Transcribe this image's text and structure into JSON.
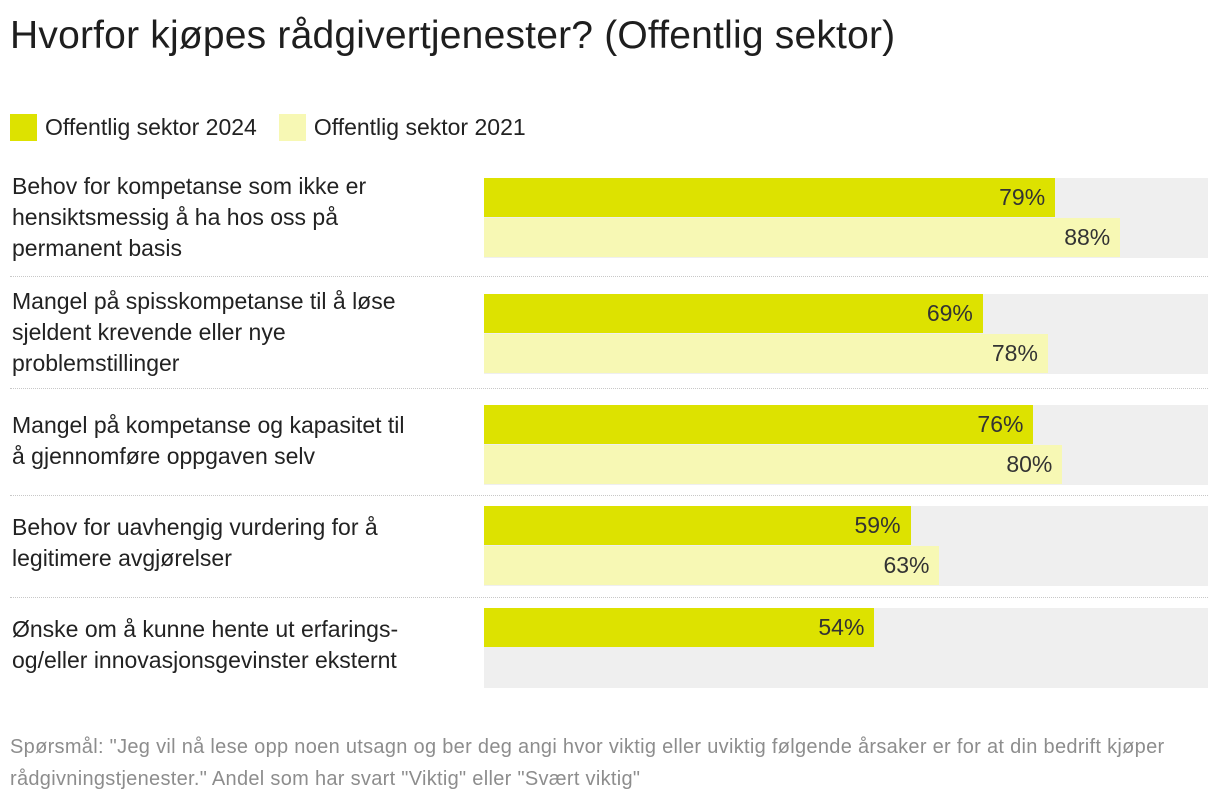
{
  "title": "Hvorfor kjøpes rådgivertjenester? (Offentlig sektor)",
  "colors": {
    "series_2024": "#dde200",
    "series_2021": "#f7f8b4",
    "track": "#efefef"
  },
  "chart_data": {
    "type": "bar",
    "orientation": "horizontal",
    "title": "Hvorfor kjøpes rådgivertjenester? (Offentlig sektor)",
    "xlim": [
      0,
      100
    ],
    "unit": "%",
    "legend_position": "top-left",
    "categories": [
      "Behov for kompetanse som ikke er hensiktsmessig å ha hos oss på permanent basis",
      "Mangel på spisskompetanse til å løse sjeldent krevende eller nye problemstillinger",
      "Mangel på kompetanse og kapasitet til å gjennomføre oppgaven selv",
      "Behov for uavhengig vurdering for å legitimere avgjørelser",
      "Ønske om å kunne hente ut erfarings- og/eller innovasjonsgevinster eksternt"
    ],
    "category_lines": [
      [
        "Behov for kompetanse som ikke er",
        "hensiktsmessig å ha hos oss på",
        "permanent basis"
      ],
      [
        "Mangel på spisskompetanse til å løse",
        "sjeldent krevende eller nye",
        "problemstillinger"
      ],
      [
        "Mangel på kompetanse og kapasitet til",
        "å gjennomføre oppgaven selv"
      ],
      [
        "Behov for uavhengig vurdering for å",
        "legitimere avgjørelser"
      ],
      [
        "Ønske om å kunne hente ut erfarings-",
        "og/eller innovasjonsgevinster eksternt"
      ]
    ],
    "series": [
      {
        "name": "Offentlig sektor 2024",
        "values": [
          79,
          69,
          76,
          59,
          54
        ],
        "labels": [
          "79%",
          "69%",
          "76%",
          "59%",
          "54%"
        ]
      },
      {
        "name": "Offentlig sektor 2021",
        "values": [
          88,
          78,
          80,
          63,
          null
        ],
        "labels": [
          "88%",
          "78%",
          "80%",
          "63%",
          null
        ]
      }
    ]
  },
  "footnote": "Spørsmål: \"Jeg vil nå lese opp noen utsagn og ber deg angi hvor viktig eller uviktig følgende årsaker er for at din bedrift kjøper rådgivningstjenester.\" Andel som har svart \"Viktig\" eller \"Svært viktig\""
}
